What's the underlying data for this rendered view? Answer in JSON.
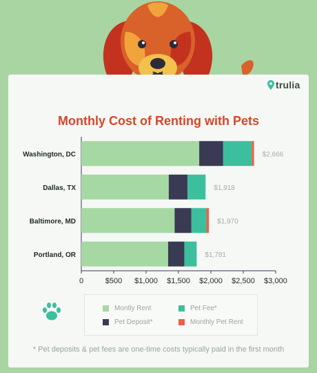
{
  "brand": {
    "name": "trulia"
  },
  "footnote": "* Pet deposits & pet fees are one-time costs typically paid in the first month",
  "colors": {
    "background": "#a8d5a2",
    "title": "#d6452b",
    "rent": "#a6d8a4",
    "deposit": "#3a3a55",
    "fee": "#3cbf9c",
    "pet_rent": "#ea6144"
  },
  "icons": {
    "mascot": "dog-icon",
    "paw": "paw-icon",
    "brand_mark": "location-pin-icon"
  },
  "chart_data": {
    "type": "bar",
    "orientation": "horizontal",
    "stacked": true,
    "title": "Monthly Cost of Renting with Pets",
    "xlabel": "",
    "ylabel": "",
    "xlim": [
      0,
      3000
    ],
    "x_ticks": [
      "0",
      "$500",
      "$1,000",
      "$1,500",
      "$2,000",
      "$2,500",
      "$3,000"
    ],
    "categories": [
      "Washington, DC",
      "Dallas, TX",
      "Baltimore, MD",
      "Portland, OR"
    ],
    "series": [
      {
        "name": "Montly Rent",
        "color": "#a6d8a4",
        "values": [
          1820,
          1350,
          1440,
          1340
        ]
      },
      {
        "name": "Pet Deposit*",
        "color": "#3a3a55",
        "values": [
          370,
          290,
          260,
          250
        ]
      },
      {
        "name": "Pet Fee*",
        "color": "#3cbf9c",
        "values": [
          440,
          278,
          230,
          191
        ]
      },
      {
        "name": "Monthly Pet Rent",
        "color": "#ea6144",
        "values": [
          36,
          0,
          40,
          0
        ]
      }
    ],
    "totals": [
      "$2,666",
      "$1,918",
      "$1,970",
      "$1,781"
    ],
    "legend": {
      "position": "bottom",
      "order": [
        0,
        2,
        1,
        3
      ]
    },
    "grid": false
  }
}
